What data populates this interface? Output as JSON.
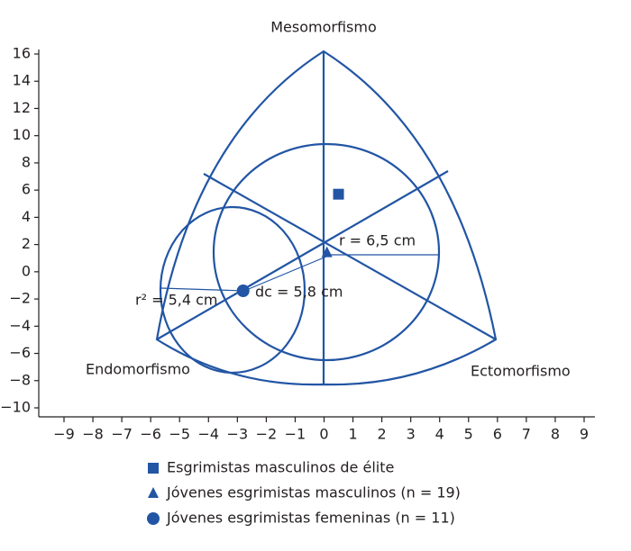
{
  "chart_data": {
    "type": "scatter",
    "title": "Mesomorfismo",
    "annotations": [
      "Endomorfismo",
      "Ectomorfismo",
      "r = 6,5 cm",
      "r² = 5,4 cm",
      "dc = 5,8 cm"
    ],
    "xlim": [
      -9,
      9
    ],
    "ylim": [
      -10,
      16
    ],
    "xticks": [
      {
        "value": -9,
        "label": "−9"
      },
      {
        "value": -8,
        "label": "−8"
      },
      {
        "value": -7,
        "label": "−7"
      },
      {
        "value": -6,
        "label": "−6"
      },
      {
        "value": -5,
        "label": "−5"
      },
      {
        "value": -4,
        "label": "−4"
      },
      {
        "value": -3,
        "label": "−3"
      },
      {
        "value": -2,
        "label": "−2"
      },
      {
        "value": -1,
        "label": "−1"
      },
      0,
      1,
      2,
      3,
      4,
      5,
      6,
      7,
      8,
      9
    ],
    "yticks": [
      {
        "value": -10,
        "label": "−10"
      },
      {
        "value": -8,
        "label": "−8"
      },
      {
        "value": -6,
        "label": "−6"
      },
      {
        "value": -4,
        "label": "−4"
      },
      {
        "value": -2,
        "label": "−2"
      },
      0,
      2,
      4,
      6,
      8,
      10,
      12,
      14,
      16
    ],
    "series": [
      {
        "name": "Esgrimistas masculinos de élite",
        "color": "#2255a4",
        "marker": "square",
        "x": [
          0.5
        ],
        "values": [
          5.7
        ]
      },
      {
        "name": "Jóvenes esgrimistas masculinos (n = 19)",
        "color": "#2255a4",
        "marker": "triangle",
        "x": [
          0.1
        ],
        "values": [
          1.4
        ]
      },
      {
        "name": "Jóvenes esgrimistas femeninas (n = 11)",
        "color": "#2255a4",
        "marker": "circle",
        "x": [
          -2.8
        ],
        "values": [
          -1.4
        ]
      }
    ]
  }
}
